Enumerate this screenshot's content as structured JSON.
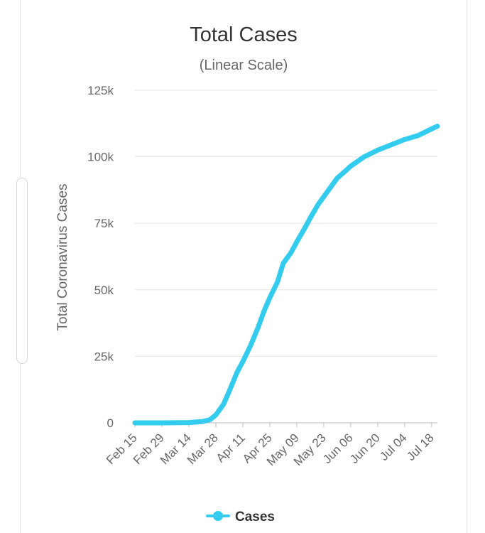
{
  "chart_data": {
    "type": "line",
    "title": "Total Cases",
    "subtitle": "(Linear Scale)",
    "xlabel": "",
    "ylabel": "Total Coronavirus Cases",
    "ylim": [
      0,
      125000
    ],
    "y_ticks": [
      {
        "value": 0,
        "label": "0"
      },
      {
        "value": 25000,
        "label": "25k"
      },
      {
        "value": 50000,
        "label": "50k"
      },
      {
        "value": 75000,
        "label": "75k"
      },
      {
        "value": 100000,
        "label": "100k"
      },
      {
        "value": 125000,
        "label": "125k"
      }
    ],
    "x_ticks": [
      "Feb 15",
      "Feb 29",
      "Mar 14",
      "Mar 28",
      "Apr 11",
      "Apr 25",
      "May 09",
      "May 23",
      "Jun 06",
      "Jun 20",
      "Jul 04",
      "Jul 18"
    ],
    "grid": true,
    "legend_position": "bottom",
    "series": [
      {
        "name": "Cases",
        "color": "#33ccee",
        "points": [
          {
            "x": "Feb 15",
            "y": 0
          },
          {
            "x": "Feb 29",
            "y": 0
          },
          {
            "x": "Mar 14",
            "y": 100
          },
          {
            "x": "Mar 21",
            "y": 500
          },
          {
            "x": "Mar 25",
            "y": 1200
          },
          {
            "x": "Mar 28",
            "y": 3000
          },
          {
            "x": "Apr 01",
            "y": 7000
          },
          {
            "x": "Apr 04",
            "y": 12000
          },
          {
            "x": "Apr 08",
            "y": 19000
          },
          {
            "x": "Apr 11",
            "y": 23000
          },
          {
            "x": "Apr 15",
            "y": 29000
          },
          {
            "x": "Apr 19",
            "y": 36000
          },
          {
            "x": "Apr 22",
            "y": 42000
          },
          {
            "x": "Apr 25",
            "y": 47000
          },
          {
            "x": "Apr 29",
            "y": 53000
          },
          {
            "x": "May 02",
            "y": 60000
          },
          {
            "x": "May 06",
            "y": 64000
          },
          {
            "x": "May 09",
            "y": 68000
          },
          {
            "x": "May 13",
            "y": 73000
          },
          {
            "x": "May 16",
            "y": 77000
          },
          {
            "x": "May 20",
            "y": 82000
          },
          {
            "x": "May 23",
            "y": 85000
          },
          {
            "x": "May 27",
            "y": 89000
          },
          {
            "x": "May 30",
            "y": 92000
          },
          {
            "x": "Jun 03",
            "y": 94500
          },
          {
            "x": "Jun 06",
            "y": 96500
          },
          {
            "x": "Jun 10",
            "y": 98500
          },
          {
            "x": "Jun 13",
            "y": 100000
          },
          {
            "x": "Jun 20",
            "y": 102500
          },
          {
            "x": "Jun 27",
            "y": 104500
          },
          {
            "x": "Jul 04",
            "y": 106500
          },
          {
            "x": "Jul 11",
            "y": 108000
          },
          {
            "x": "Jul 18",
            "y": 110500
          },
          {
            "x": "Jul 21",
            "y": 111500
          }
        ]
      }
    ]
  }
}
